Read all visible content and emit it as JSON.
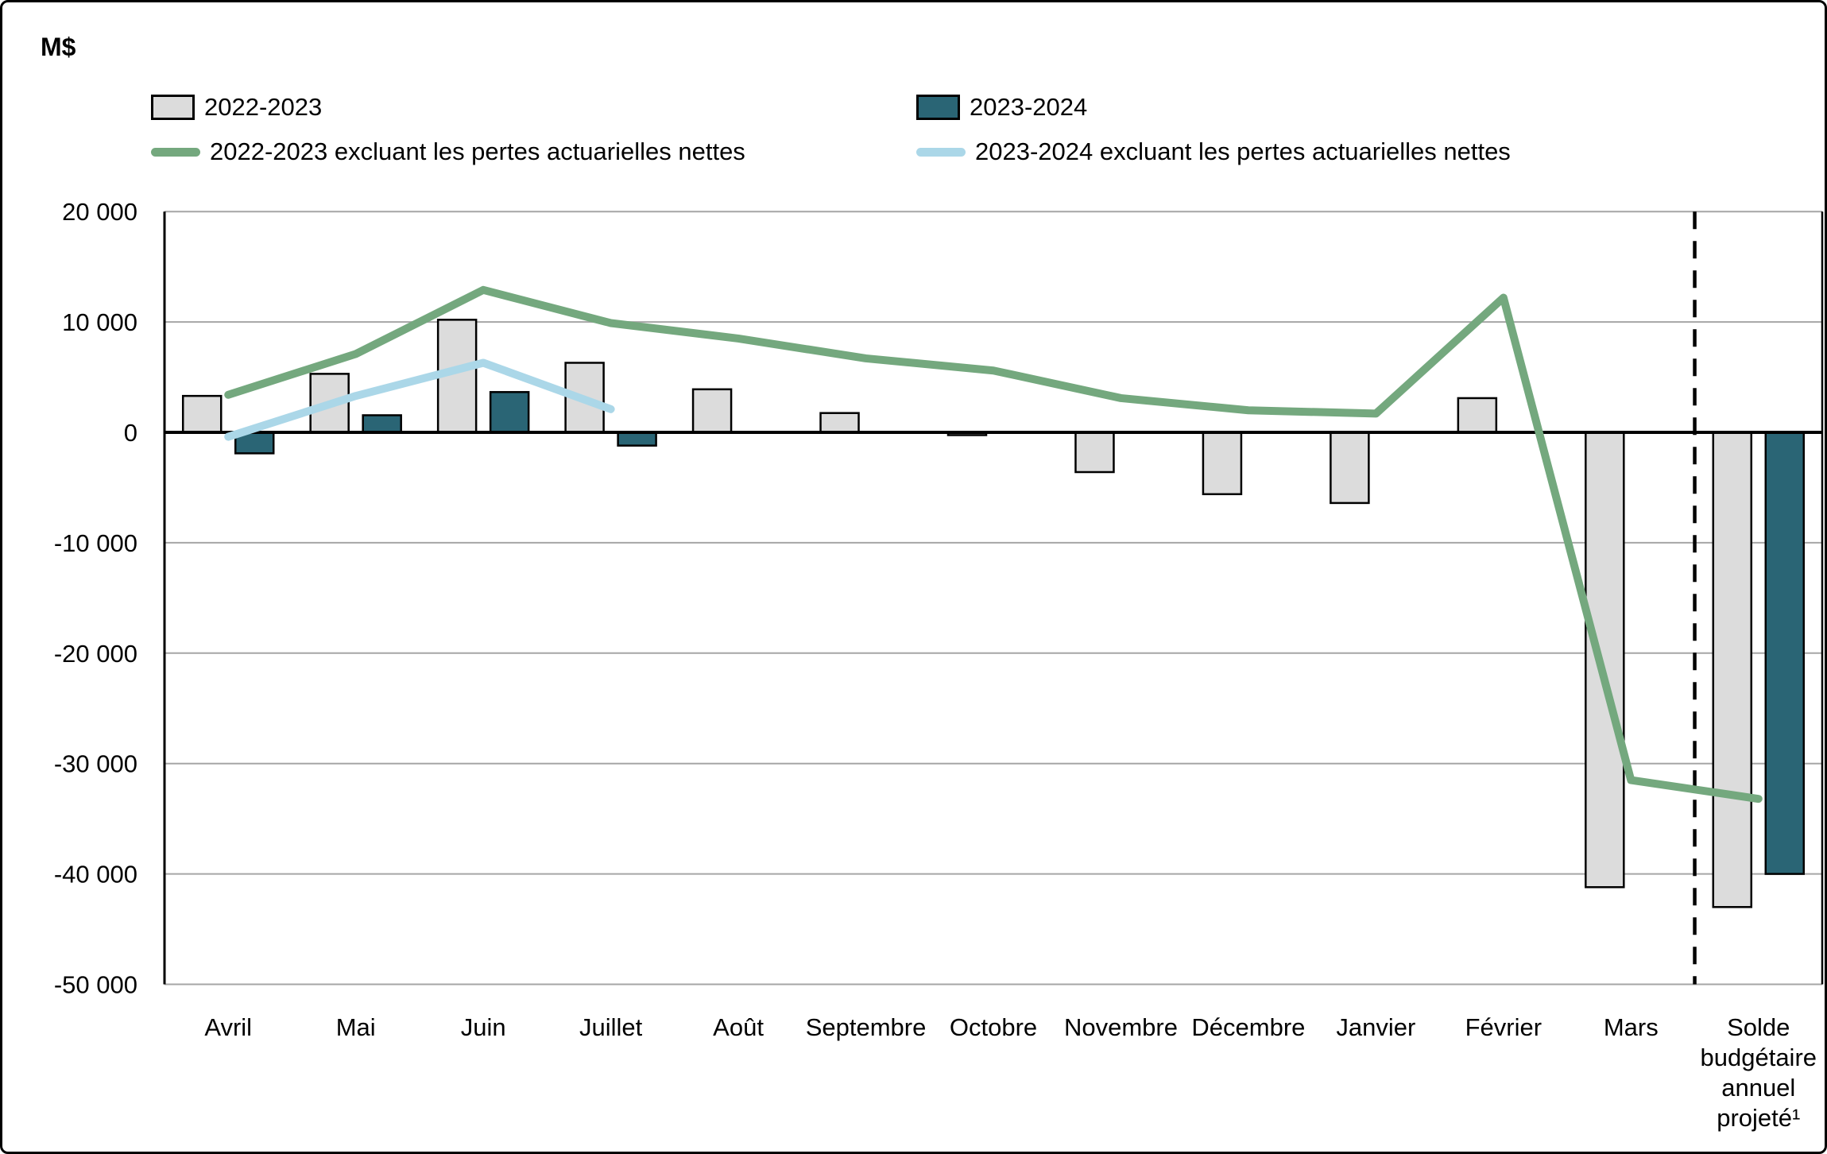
{
  "page": {
    "unit_label": "M$"
  },
  "legend": {
    "items": [
      {
        "label": "2022-2023",
        "swatch": "bar",
        "color": "#dcdcdc"
      },
      {
        "label": "2023-2024",
        "swatch": "bar",
        "color": "#2a6575"
      },
      {
        "label": "2022-2023 excluant les pertes actuarielles nettes",
        "swatch": "line",
        "color": "#74a87e"
      },
      {
        "label": "2023-2024 excluant les pertes actuarielles nettes",
        "swatch": "line",
        "color": "#abd7e8"
      }
    ]
  },
  "chart_data": {
    "type": "bar",
    "subtype": "grouped bars with overlaid lines",
    "unit": "M$",
    "categories": [
      "Avril",
      "Mai",
      "Juin",
      "Juillet",
      "Août",
      "Septembre",
      "Octobre",
      "Novembre",
      "Décembre",
      "Janvier",
      "Février",
      "Mars",
      "Solde budgétaire annuel projeté¹"
    ],
    "last_category_lines": [
      "Solde",
      "budgétaire",
      "annuel",
      "projeté¹"
    ],
    "series": [
      {
        "name": "2022-2023",
        "type": "bar",
        "color": "#dcdcdc",
        "stroke": "#000000",
        "values": [
          3300,
          5300,
          10200,
          6300,
          3900,
          1750,
          -250,
          -3600,
          -5600,
          -6400,
          3100,
          -41200,
          -43000
        ]
      },
      {
        "name": "2023-2024",
        "type": "bar",
        "color": "#2a6575",
        "stroke": "#000000",
        "values": [
          -1900,
          1550,
          3650,
          -1200,
          null,
          null,
          null,
          null,
          null,
          null,
          null,
          null,
          -40000
        ]
      },
      {
        "name": "2022-2023 excluant les pertes actuarielles nettes",
        "type": "line",
        "color": "#74a87e",
        "values": [
          3400,
          7100,
          12900,
          9900,
          8500,
          6700,
          5600,
          3100,
          2000,
          1700,
          12200,
          -31500,
          -33200
        ]
      },
      {
        "name": "2023-2024 excluant les pertes actuarielles nettes",
        "type": "line",
        "color": "#abd7e8",
        "values": [
          -400,
          3300,
          6300,
          2100,
          null,
          null,
          null,
          null,
          null,
          null,
          null,
          null,
          null
        ]
      }
    ],
    "y_ticks": [
      {
        "value": 20000,
        "label": "20 000"
      },
      {
        "value": 10000,
        "label": "10 000"
      },
      {
        "value": 0,
        "label": "0"
      },
      {
        "value": -10000,
        "label": "-10 000"
      },
      {
        "value": -20000,
        "label": "-20 000"
      },
      {
        "value": -30000,
        "label": "-30 000"
      },
      {
        "value": -40000,
        "label": "-40 000"
      },
      {
        "value": -50000,
        "label": "-50 000"
      }
    ],
    "ylim": [
      -50000,
      20000
    ],
    "ylabel": "M$",
    "xlabel": "",
    "title": "",
    "grid": true,
    "gridline_color": "#a6a6a6",
    "axis_color": "#000000",
    "separator_after_index": 11,
    "separator_style": "dashed",
    "legend_position": "top"
  }
}
